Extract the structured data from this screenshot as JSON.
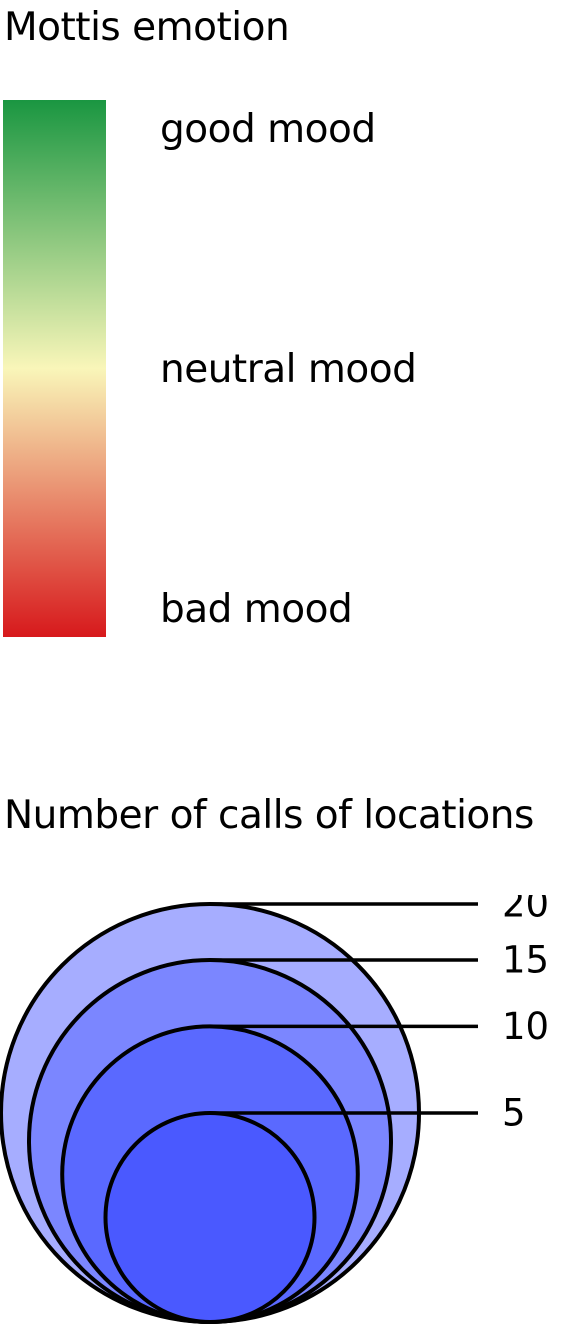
{
  "emotion_legend": {
    "title": "Mottis emotion",
    "colors": {
      "good": "#1a9641",
      "neutral": "#f9f6b9",
      "bad": "#d7191c"
    },
    "labels": {
      "good": "good mood",
      "neutral": "neutral mood",
      "bad": "bad mood"
    }
  },
  "calls_legend": {
    "title": "Number of calls of locations",
    "sizes": [
      {
        "value": 20,
        "label": "20",
        "color": "#a6adff"
      },
      {
        "value": 15,
        "label": "15",
        "color": "#7b86ff"
      },
      {
        "value": 10,
        "label": "10",
        "color": "#5a69ff"
      },
      {
        "value": 5,
        "label": "5",
        "color": "#4a59ff"
      }
    ]
  }
}
